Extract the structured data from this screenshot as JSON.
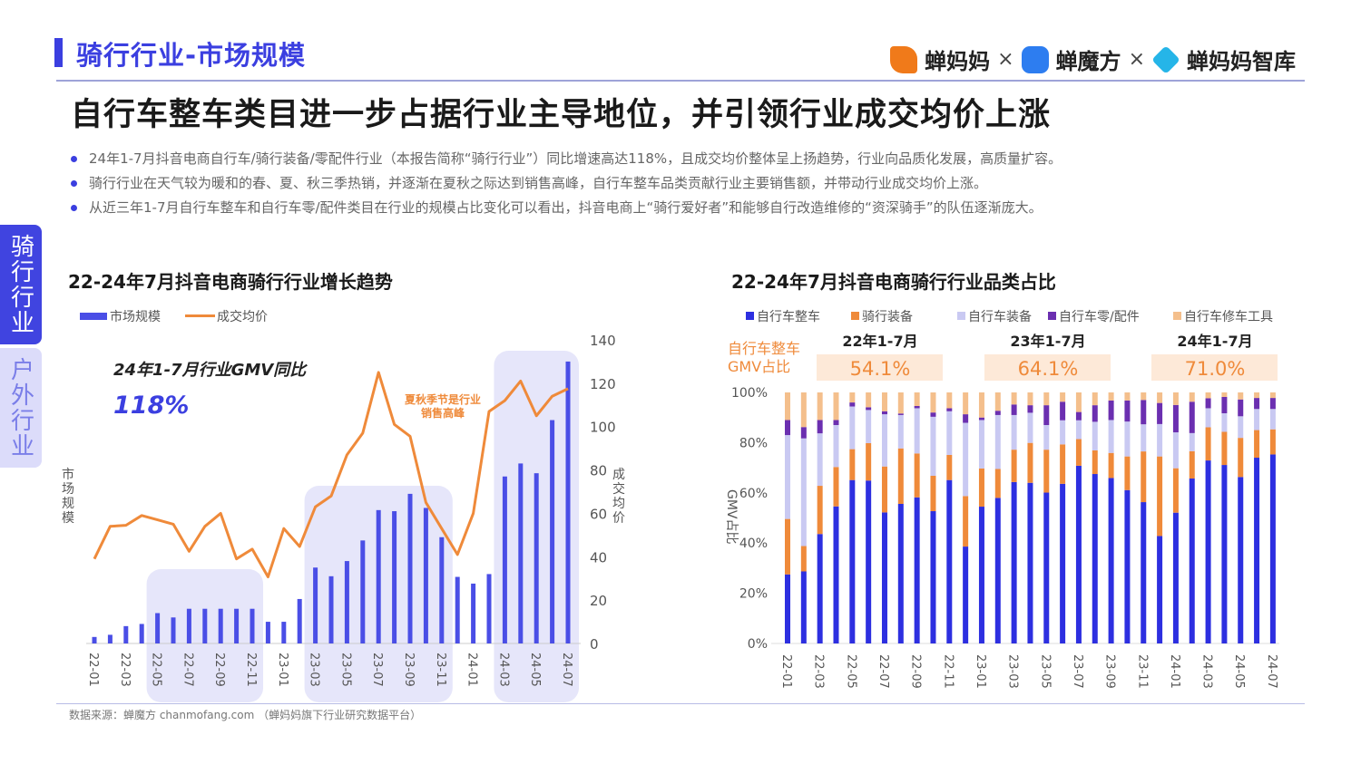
{
  "header": {
    "section_title": "骑行行业-市场规模",
    "headline": "自行车整车类目进一步占据行业主导地位，并引领行业成交均价上涨",
    "logos": [
      {
        "name": "蝉妈妈",
        "icon": "chanmama-logo",
        "color": "#f07a1a"
      },
      {
        "name": "蝉魔方",
        "icon": "chanmofang-logo",
        "color": "#2d7df0"
      },
      {
        "name": "蝉妈妈智库",
        "icon": "chanmama-zhiku-logo",
        "color": "#25b5e8"
      }
    ],
    "separator": "×"
  },
  "bullets": [
    "24年1-7月抖音电商自行车/骑行装备/零配件行业（本报告简称“骑行行业”）同比增速高达118%，且成交均价整体呈上扬趋势，行业向品质化发展，高质量扩容。",
    "骑行行业在天气较为暖和的春、夏、秋三季热销，并逐渐在夏秋之际达到销售高峰，自行车整车品类贡献行业主要销售额，并带动行业成交均价上涨。",
    "从近三年1-7月自行车整车和自行车零/配件类目在行业的规模占比变化可以看出，抖音电商上“骑行爱好者”和能够自行改造维修的“资深骑手”的队伍逐渐庞大。"
  ],
  "side_tabs": [
    {
      "label": "骑行行业",
      "active": true
    },
    {
      "label": "户外行业",
      "active": false
    }
  ],
  "footer": {
    "source": "数据来源：蝉魔方 chanmofang.com （蝉妈妈旗下行业研究数据平台）"
  },
  "chart_data": [
    {
      "type": "bar+line",
      "title": "22-24年7月抖音电商骑行行业增长趋势",
      "categories": [
        "22-01",
        "22-02",
        "22-03",
        "22-04",
        "22-05",
        "22-06",
        "22-07",
        "22-08",
        "22-09",
        "22-10",
        "22-11",
        "22-12",
        "23-01",
        "23-02",
        "23-03",
        "23-04",
        "23-05",
        "23-06",
        "23-07",
        "23-08",
        "23-09",
        "23-10",
        "23-11",
        "23-12",
        "24-01",
        "24-02",
        "24-03",
        "24-04",
        "24-05",
        "24-06",
        "24-07"
      ],
      "tick_labels": [
        "22-01",
        "22-03",
        "22-05",
        "22-07",
        "22-09",
        "22-11",
        "23-01",
        "23-03",
        "23-05",
        "23-07",
        "23-09",
        "23-11",
        "24-01",
        "24-03",
        "24-05",
        "24-07"
      ],
      "series": [
        {
          "name": "市场规模",
          "type": "bar",
          "color": "#4a4ee6",
          "values": [
            3,
            4,
            8,
            9,
            14,
            12,
            16,
            16,
            16,
            16,
            16,
            10,
            10,
            20.5,
            35,
            31,
            38,
            47.5,
            61.5,
            61,
            69,
            62.5,
            49,
            30.7,
            27.6,
            32,
            77,
            83,
            78.5,
            103,
            130
          ]
        },
        {
          "name": "成交均价",
          "type": "line",
          "color": "#ef8a3a",
          "values": [
            39,
            54,
            54.5,
            59,
            57,
            55,
            42.5,
            54,
            60,
            39,
            43.5,
            30.7,
            53,
            44.7,
            63,
            68,
            87,
            97,
            125,
            101,
            95.5,
            65,
            53,
            41,
            60,
            107,
            112,
            121,
            105,
            114,
            117.5
          ]
        }
      ],
      "ylabel_left": "市场规模",
      "ylabel_right": "成交均价",
      "yright_ticks": [
        0,
        20,
        40,
        60,
        80,
        100,
        120,
        140
      ],
      "ylim": [
        0,
        140
      ],
      "highlights": [
        [
          "22-05",
          "22-11"
        ],
        [
          "23-03",
          "23-11"
        ],
        [
          "24-03",
          "24-07"
        ]
      ],
      "callout": {
        "label": "24年1-7月行业GMV同比",
        "value": "118%"
      },
      "annotation": "夏秋季节是行业销售高峰",
      "legend": "top-left"
    },
    {
      "type": "stacked-bar",
      "title": "22-24年7月抖音电商骑行行业品类占比",
      "categories": [
        "22-01",
        "22-02",
        "22-03",
        "22-04",
        "22-05",
        "22-06",
        "22-07",
        "22-08",
        "22-09",
        "22-10",
        "22-11",
        "22-12",
        "23-01",
        "23-02",
        "23-03",
        "23-04",
        "23-05",
        "23-06",
        "23-07",
        "23-08",
        "23-09",
        "23-10",
        "23-11",
        "23-12",
        "24-01",
        "24-02",
        "24-03",
        "24-04",
        "24-05",
        "24-06",
        "24-07"
      ],
      "tick_labels": [
        "22-01",
        "22-03",
        "22-05",
        "22-07",
        "22-09",
        "22-11",
        "23-01",
        "23-03",
        "23-05",
        "23-07",
        "23-09",
        "23-11",
        "24-01",
        "24-03",
        "24-05",
        "24-07"
      ],
      "ylabel": "GMV占比",
      "yticks": [
        "0%",
        "20%",
        "40%",
        "60%",
        "80%",
        "100%"
      ],
      "ylim": [
        0,
        100
      ],
      "legend": "top",
      "series": [
        {
          "name": "自行车整车",
          "color": "#2d2fe0",
          "values": [
            27.5,
            28.7,
            43.6,
            54.6,
            65.1,
            64.9,
            52.2,
            55.6,
            58.2,
            52.7,
            65.1,
            38.6,
            54.5,
            58,
            64.3,
            64,
            60.1,
            63.6,
            70.8,
            67.5,
            65.9,
            61.1,
            56.3,
            42.8,
            52.1,
            65.7,
            72.9,
            71.1,
            66.3,
            74,
            75.3
          ]
        },
        {
          "name": "骑行装备",
          "color": "#ef8a3a",
          "values": [
            22.1,
            10.1,
            19.2,
            15.7,
            12.3,
            14.9,
            18.3,
            22.1,
            17.5,
            14.1,
            10,
            20.1,
            15.2,
            11.5,
            12.9,
            15.9,
            17.1,
            15.7,
            10.6,
            9.4,
            10,
            13.4,
            20.2,
            31.7,
            17.7,
            10.9,
            13.2,
            13.2,
            15.6,
            11,
            10
          ]
        },
        {
          "name": "自行车装备",
          "color": "#c9c9f2",
          "values": [
            33.4,
            42.9,
            20.9,
            16.7,
            17,
            13.2,
            20.8,
            13.3,
            18,
            23.5,
            17.4,
            29.2,
            19.3,
            21.5,
            13.8,
            12,
            9.8,
            9.6,
            7.5,
            11.4,
            13.1,
            13.9,
            10.8,
            12.9,
            14.3,
            7.2,
            7.6,
            7.4,
            8.6,
            8.4,
            8.1
          ]
        },
        {
          "name": "自行车零/配件",
          "color": "#6b2fb0",
          "values": [
            6,
            4.5,
            5.3,
            2,
            1.6,
            1.1,
            1.2,
            0.6,
            0.9,
            1.7,
            1.2,
            3.4,
            1,
            1.7,
            4.2,
            3,
            7.9,
            7.4,
            3.3,
            6.6,
            7.8,
            8.4,
            9.7,
            8.4,
            10.9,
            12.5,
            4,
            6.5,
            6.7,
            4.4,
            4.4
          ]
        },
        {
          "name": "自行车修车工具",
          "color": "#f4bf8c",
          "values": [
            11,
            13.8,
            11,
            11,
            4,
            5.9,
            7.5,
            8.4,
            5.4,
            8,
            6.3,
            8.7,
            10,
            7.3,
            4.8,
            5.1,
            5.1,
            3.7,
            7.8,
            5.1,
            3.2,
            3.2,
            3,
            4.2,
            5,
            3.7,
            2.3,
            1.8,
            2.8,
            2.2,
            2.2
          ]
        }
      ],
      "summary": {
        "label": "自行车整车GMV占比",
        "items": [
          {
            "period": "22年1-7月",
            "value": "54.1%"
          },
          {
            "period": "23年1-7月",
            "value": "64.1%"
          },
          {
            "period": "24年1-7月",
            "value": "71.0%"
          }
        ]
      }
    }
  ]
}
